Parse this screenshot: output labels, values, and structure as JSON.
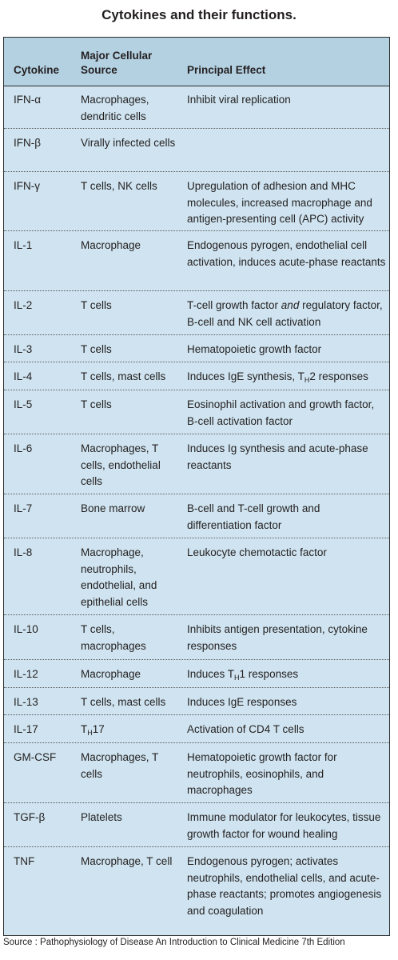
{
  "title": "Cytokines and their functions.",
  "headers": {
    "cytokine": "Cytokine",
    "source": "Major Cellular Source",
    "effect": "Principal Effect"
  },
  "rows": [
    {
      "cytokine": "IFN-α",
      "source": "Macrophages, dendritic cells",
      "effect": "Inhibit viral replication"
    },
    {
      "cytokine": "IFN-β",
      "source": "Virally infected cells",
      "effect": ""
    },
    {
      "cytokine": "IFN-γ",
      "source": "T cells, NK cells",
      "effect": "Upregulation of adhesion and MHC molecules, increased macrophage and antigen-presenting cell (APC) activity"
    },
    {
      "cytokine": "IL-1",
      "source": "Macrophage",
      "effect": "Endogenous pyrogen, endothelial cell activation, induces acute-phase reactants"
    },
    {
      "cytokine": "IL-2",
      "source": "T cells",
      "effect": "T-cell growth factor and regulatory factor, B-cell and NK cell activation"
    },
    {
      "cytokine": "IL-3",
      "source": "T cells",
      "effect": "Hematopoietic growth factor"
    },
    {
      "cytokine": "IL-4",
      "source": "T cells, mast cells",
      "effect": "Induces IgE synthesis, TH2 responses"
    },
    {
      "cytokine": "IL-5",
      "source": "T cells",
      "effect": "Eosinophil activation and growth factor, B-cell activation factor"
    },
    {
      "cytokine": "IL-6",
      "source": "Macrophages, T cells, endothelial cells",
      "effect": "Induces Ig synthesis and acute-phase reactants"
    },
    {
      "cytokine": "IL-7",
      "source": "Bone marrow",
      "effect": "B-cell and T-cell growth and differentiation factor"
    },
    {
      "cytokine": "IL-8",
      "source": "Macrophage, neutrophils, endothelial, and epithelial cells",
      "effect": "Leukocyte chemotactic factor"
    },
    {
      "cytokine": "IL-10",
      "source": "T cells, macrophages",
      "effect": "Inhibits antigen presentation, cytokine responses"
    },
    {
      "cytokine": "IL-12",
      "source": "Macrophage",
      "effect": "Induces TH1 responses"
    },
    {
      "cytokine": "IL-13",
      "source": "T cells, mast cells",
      "effect": "Induces IgE responses"
    },
    {
      "cytokine": "IL-17",
      "source": "TH17",
      "effect": "Activation of CD4 T cells"
    },
    {
      "cytokine": "GM-CSF",
      "source": "Macrophages, T cells",
      "effect": "Hematopoietic growth factor for neutrophils, eosinophils, and macrophages"
    },
    {
      "cytokine": "TGF-β",
      "source": "Platelets",
      "effect": "Immune modulator for leukocytes, tissue growth factor for wound healing"
    },
    {
      "cytokine": "TNF",
      "source": "Macrophage, T cell",
      "effect": "Endogenous pyrogen; activates neutrophils, endothelial cells, and acute-phase reactants; promotes angiogenesis and coagulation"
    }
  ],
  "source_note": "Source : Pathophysiology of Disease An Introduction to Clinical Medicine 7th Edition",
  "colors": {
    "header_bg": "#b4d1e2",
    "body_bg": "#cfe4f0"
  }
}
